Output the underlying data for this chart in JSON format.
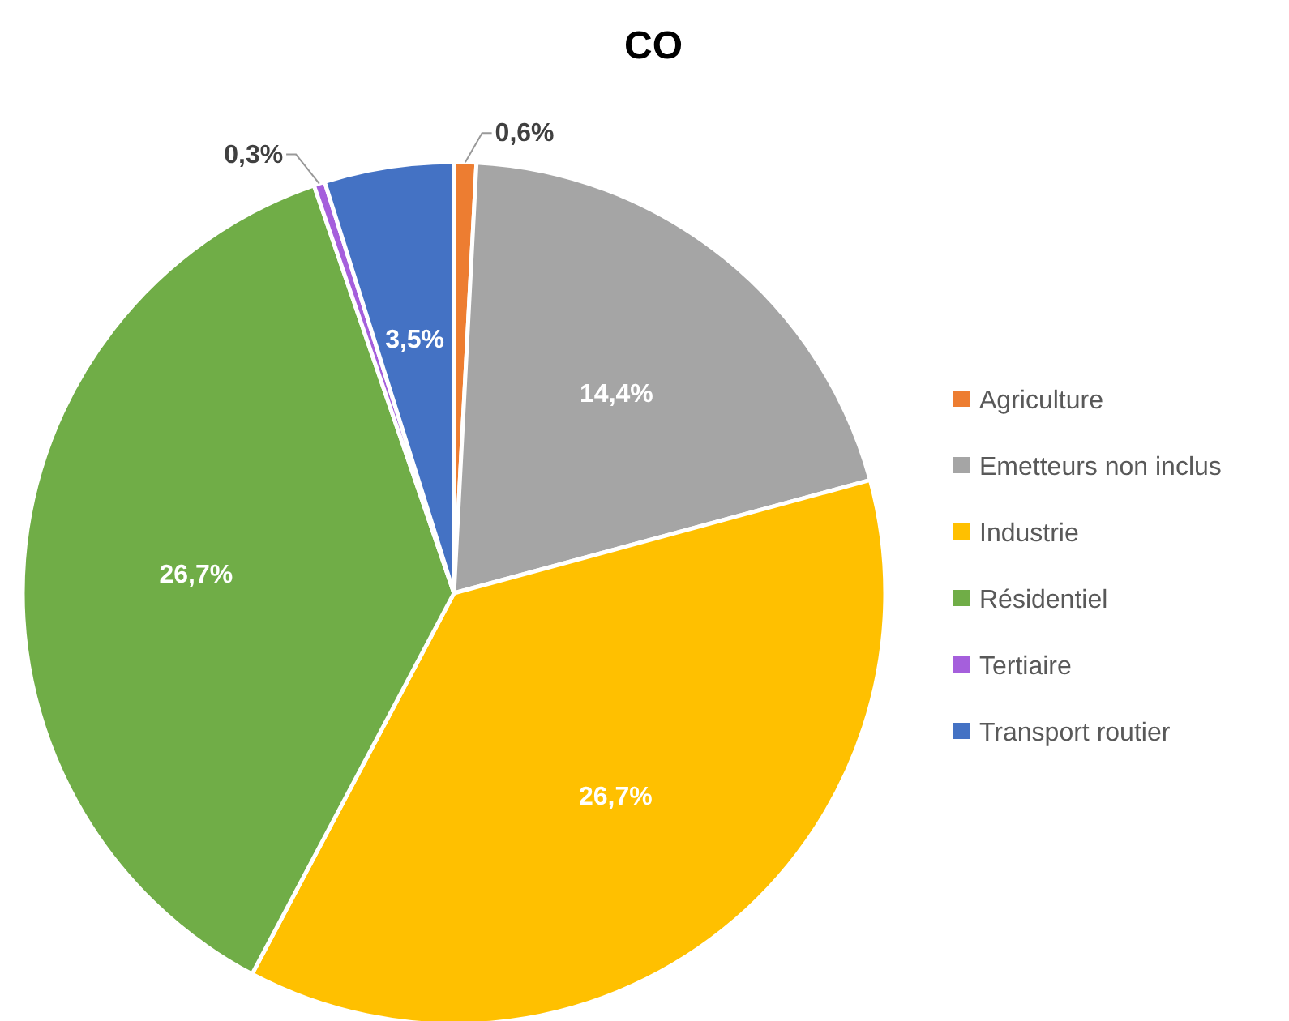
{
  "chart_data": {
    "type": "pie",
    "title": "CO",
    "categories": [
      "Agriculture",
      "Emetteurs non inclus",
      "Industrie",
      "Résidentiel",
      "Tertiaire",
      "Transport routier"
    ],
    "values": [
      0.6,
      14.4,
      26.7,
      26.7,
      0.3,
      3.5
    ],
    "colors": [
      "#ed7d31",
      "#a5a5a5",
      "#ffc000",
      "#70ad47",
      "#a55fdc",
      "#4472c4"
    ],
    "value_labels": [
      "0,6%",
      "14,4%",
      "26,7%",
      "26,7%",
      "0,3%",
      "3,5%"
    ],
    "legend": "right"
  }
}
